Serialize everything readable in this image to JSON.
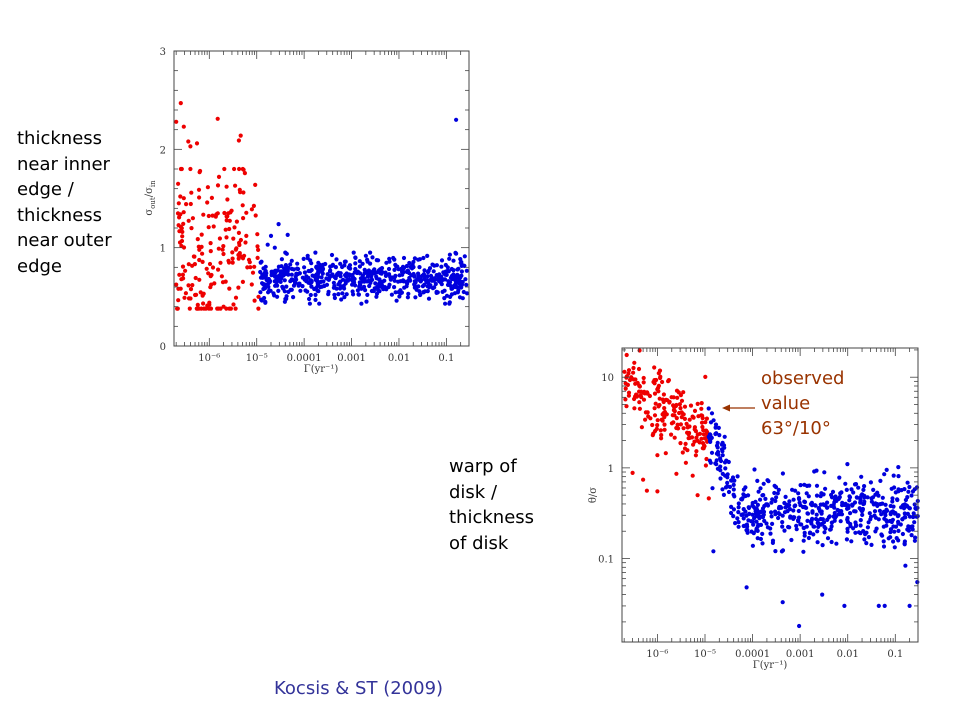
{
  "labels": {
    "left_plot_description": [
      "thickness",
      "near inner",
      "edge /",
      "thickness",
      "near outer",
      "edge"
    ],
    "right_plot_description": [
      "warp of",
      "disk /",
      "thickness",
      "of disk"
    ],
    "annotation": [
      "observed",
      "value",
      "63°/10°"
    ],
    "citation": "Kocsis & ST (2009)"
  },
  "colors": {
    "red_series": "#ee0000",
    "blue_series": "#0000dd",
    "annotation": "#993300",
    "citation": "#333399"
  },
  "chart_data": [
    {
      "type": "scatter",
      "title": "",
      "xlabel": "Γ(yr⁻¹)",
      "ylabel": "σ_out/σ_in",
      "ylabel_main": "σ",
      "ylabel_sub_top": "out",
      "ylabel_sub_bottom": "in",
      "x_scale": "log",
      "y_scale": "linear",
      "xlim": [
        1.8e-07,
        0.3
      ],
      "ylim": [
        0,
        3
      ],
      "x_ticks": [
        {
          "value": 1e-06,
          "label": "10⁻⁶"
        },
        {
          "value": 1e-05,
          "label": "10⁻⁵"
        },
        {
          "value": 0.0001,
          "label": "0.0001"
        },
        {
          "value": 0.001,
          "label": "0.001"
        },
        {
          "value": 0.01,
          "label": "0.01"
        },
        {
          "value": 0.1,
          "label": "0.1"
        }
      ],
      "y_ticks": [
        {
          "value": 0,
          "label": "0"
        },
        {
          "value": 1,
          "label": "1"
        },
        {
          "value": 2,
          "label": "2"
        },
        {
          "value": 3,
          "label": "3"
        }
      ],
      "grid": false,
      "series": [
        {
          "name": "red",
          "color": "#ee0000",
          "distribution": {
            "x_log_range": [
              -6.7,
              -4.95
            ],
            "y_center": 0.95,
            "y_spread": 0.45,
            "y_min": 0.38,
            "y_max": 1.8,
            "count": 190,
            "seed": 11
          },
          "points": [
            [
              2e-07,
              2.28
            ],
            [
              2.5e-07,
              2.47
            ],
            [
              2.9e-07,
              2.23
            ],
            [
              3.6e-07,
              2.08
            ],
            [
              4e-07,
              2.03
            ],
            [
              5.5e-07,
              2.06
            ],
            [
              1.5e-06,
              2.31
            ],
            [
              4.2e-06,
              2.09
            ],
            [
              4.6e-06,
              2.14
            ],
            [
              2.2e-07,
              1.65
            ],
            [
              4e-07,
              1.8
            ],
            [
              6.4e-07,
              1.78
            ],
            [
              1.6e-06,
              1.72
            ],
            [
              3.5e-06,
              1.63
            ],
            [
              1e-06,
              0.42
            ],
            [
              2e-06,
              0.4
            ],
            [
              3e-07,
              0.49
            ]
          ]
        },
        {
          "name": "blue",
          "color": "#0000dd",
          "distribution": {
            "x_log_range": [
              -4.95,
              -0.52
            ],
            "y_center": 0.69,
            "y_spread": 0.11,
            "y_min": 0.43,
            "y_max": 0.95,
            "count": 620,
            "seed": 29
          },
          "points": [
            [
              2e-05,
              1.12
            ],
            [
              2.9e-05,
              1.24
            ],
            [
              4.5e-05,
              1.13
            ],
            [
              1.7e-05,
              1.03
            ],
            [
              2.4e-05,
              1.0
            ],
            [
              0.16,
              2.3
            ],
            [
              0.16,
              0.94
            ],
            [
              0.0012,
              0.9
            ],
            [
              1.4e-05,
              0.63
            ]
          ]
        }
      ]
    },
    {
      "type": "scatter",
      "title": "",
      "xlabel": "Γ(yr⁻¹)",
      "ylabel": "θ/σ",
      "x_scale": "log",
      "y_scale": "log",
      "xlim": [
        1.8e-07,
        0.3
      ],
      "ylim": [
        0.012,
        21
      ],
      "x_ticks": [
        {
          "value": 1e-06,
          "label": "10⁻⁶"
        },
        {
          "value": 1e-05,
          "label": "10⁻⁵"
        },
        {
          "value": 0.0001,
          "label": "0.0001"
        },
        {
          "value": 0.001,
          "label": "0.001"
        },
        {
          "value": 0.01,
          "label": "0.01"
        },
        {
          "value": 0.1,
          "label": "0.1"
        }
      ],
      "y_ticks": [
        {
          "value": 0.1,
          "label": "0.1"
        },
        {
          "value": 1,
          "label": "1"
        },
        {
          "value": 10,
          "label": "10"
        }
      ],
      "grid": false,
      "annotation": {
        "text": "observed value 63°/10°",
        "arrow_to": [
          2.2e-05,
          6.3
        ]
      },
      "series": [
        {
          "name": "red",
          "color": "#ee0000",
          "distribution": {
            "x_log_range": [
              -6.7,
              -4.95
            ],
            "trend": "decreasing",
            "log_y_start": 0.95,
            "log_y_end": 0.35,
            "log_y_spread": 0.17,
            "count": 200,
            "seed": 7
          },
          "points": [
            [
              3e-07,
              0.88
            ],
            [
              6e-07,
              0.56
            ],
            [
              5e-07,
              0.74
            ],
            [
              1e-06,
              0.55
            ],
            [
              2.5e-06,
              0.86
            ],
            [
              5.5e-06,
              0.82
            ],
            [
              7e-06,
              0.5
            ],
            [
              1.2e-05,
              0.46
            ],
            [
              1.5e-06,
              1.45
            ],
            [
              1e-06,
              1.38
            ],
            [
              5.5e-07,
              3.4
            ],
            [
              8e-07,
              2.3
            ],
            [
              1.2e-06,
              2.3
            ]
          ]
        },
        {
          "name": "blue",
          "color": "#0000dd",
          "distribution": {
            "x_log_range": [
              -4.95,
              -0.52
            ],
            "trend": "knee",
            "log_y_start": 0.35,
            "log_y_plateau": -0.5,
            "knee_log_x": -4.2,
            "log_y_spread": 0.18,
            "count": 560,
            "seed": 41
          },
          "points": [
            [
              1.4e-05,
              4.0
            ],
            [
              1.7e-05,
              3.0
            ],
            [
              2e-05,
              2.3
            ],
            [
              2.6e-05,
              2.2
            ],
            [
              1.5e-05,
              0.12
            ],
            [
              7.5e-05,
              0.048
            ],
            [
              0.00043,
              0.033
            ],
            [
              0.00095,
              0.018
            ],
            [
              0.0029,
              0.04
            ],
            [
              0.0085,
              0.03
            ],
            [
              0.045,
              0.03
            ],
            [
              0.06,
              0.03
            ],
            [
              0.2,
              0.03
            ],
            [
              0.066,
              0.95
            ],
            [
              0.00011,
              0.96
            ],
            [
              0.29,
              0.055
            ]
          ]
        }
      ]
    }
  ]
}
